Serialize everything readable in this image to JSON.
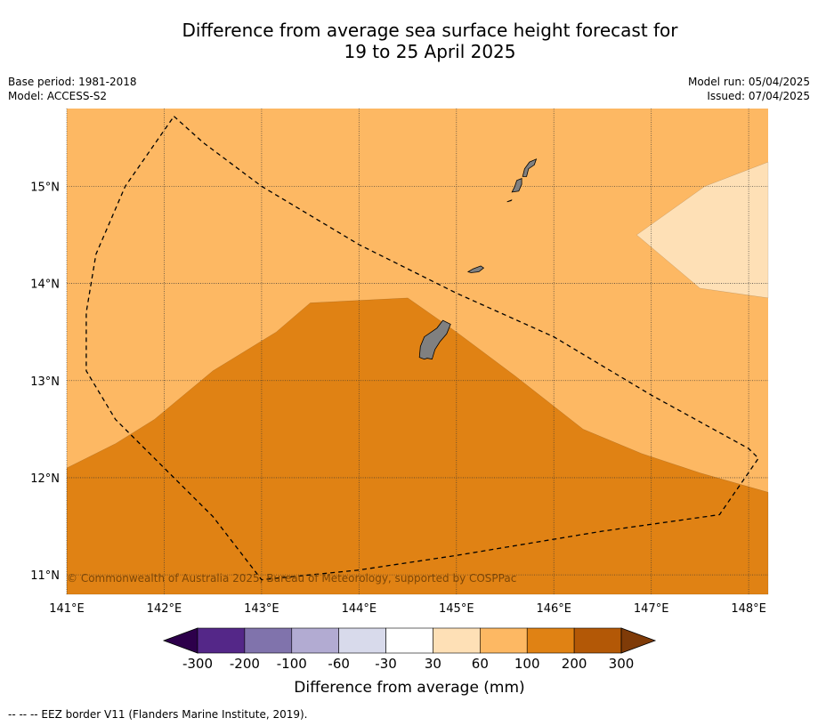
{
  "title": {
    "line1": "Difference from average sea surface height forecast for",
    "line2": "19 to 25 April 2025"
  },
  "info_left": {
    "base_period": "Base period: 1981-2018",
    "model": "Model: ACCESS-S2"
  },
  "info_right": {
    "model_run": "Model run: 05/04/2025",
    "issued": "Issued: 07/04/2025"
  },
  "map": {
    "lon_range": [
      141.0,
      148.2
    ],
    "lat_range": [
      10.8,
      15.8
    ],
    "lon_ticks": [
      141,
      142,
      143,
      144,
      145,
      146,
      147,
      148
    ],
    "lon_tick_labels": [
      "141°E",
      "142°E",
      "143°E",
      "144°E",
      "145°E",
      "146°E",
      "147°E",
      "148°E"
    ],
    "lat_ticks": [
      11,
      12,
      13,
      14,
      15
    ],
    "lat_tick_labels": [
      "11°N",
      "12°N",
      "13°N",
      "14°N",
      "15°N"
    ],
    "gridlines": true,
    "background_class": "60 to 100",
    "regions": [
      {
        "class": "100 to 200",
        "color": "#e08214",
        "polygon": [
          [
            141.0,
            10.8
          ],
          [
            148.2,
            10.8
          ],
          [
            148.2,
            11.85
          ],
          [
            147.5,
            12.05
          ],
          [
            146.9,
            12.25
          ],
          [
            146.3,
            12.5
          ],
          [
            145.6,
            13.05
          ],
          [
            145.0,
            13.5
          ],
          [
            144.5,
            13.85
          ],
          [
            143.5,
            13.8
          ],
          [
            143.15,
            13.5
          ],
          [
            142.5,
            13.1
          ],
          [
            141.9,
            12.6
          ],
          [
            141.5,
            12.35
          ],
          [
            141.0,
            12.1
          ]
        ]
      },
      {
        "class": "30 to 60",
        "color": "#fee0b6",
        "polygon": [
          [
            148.2,
            15.25
          ],
          [
            147.55,
            15.0
          ],
          [
            146.85,
            14.5
          ],
          [
            147.5,
            13.95
          ],
          [
            148.2,
            13.85
          ]
        ]
      }
    ],
    "islands": [
      {
        "name": "guam",
        "polygon": [
          [
            144.62,
            13.24
          ],
          [
            144.63,
            13.35
          ],
          [
            144.67,
            13.45
          ],
          [
            144.8,
            13.54
          ],
          [
            144.86,
            13.62
          ],
          [
            144.94,
            13.58
          ],
          [
            144.9,
            13.48
          ],
          [
            144.83,
            13.4
          ],
          [
            144.78,
            13.32
          ],
          [
            144.75,
            13.22
          ],
          [
            144.7,
            13.23
          ],
          [
            144.67,
            13.22
          ]
        ]
      },
      {
        "name": "rota",
        "polygon": [
          [
            145.12,
            14.12
          ],
          [
            145.17,
            14.15
          ],
          [
            145.25,
            14.18
          ],
          [
            145.28,
            14.16
          ],
          [
            145.23,
            14.12
          ],
          [
            145.15,
            14.11
          ]
        ]
      },
      {
        "name": "tinian",
        "polygon": [
          [
            145.57,
            14.94
          ],
          [
            145.6,
            15.0
          ],
          [
            145.62,
            15.06
          ],
          [
            145.67,
            15.08
          ],
          [
            145.67,
            15.02
          ],
          [
            145.64,
            14.95
          ]
        ]
      },
      {
        "name": "saipan",
        "polygon": [
          [
            145.68,
            15.1
          ],
          [
            145.7,
            15.18
          ],
          [
            145.75,
            15.25
          ],
          [
            145.82,
            15.28
          ],
          [
            145.8,
            15.22
          ],
          [
            145.74,
            15.18
          ],
          [
            145.72,
            15.1
          ]
        ]
      },
      {
        "name": "aguijan",
        "polygon": [
          [
            145.52,
            14.84
          ],
          [
            145.57,
            14.86
          ],
          [
            145.56,
            14.85
          ]
        ]
      }
    ],
    "eez_border": [
      [
        142.1,
        15.72
      ],
      [
        142.4,
        15.45
      ],
      [
        143.0,
        15.0
      ],
      [
        144.0,
        14.4
      ],
      [
        145.0,
        13.9
      ],
      [
        146.0,
        13.45
      ],
      [
        147.0,
        12.85
      ],
      [
        148.0,
        12.3
      ],
      [
        148.1,
        12.2
      ],
      [
        147.7,
        11.62
      ],
      [
        146.5,
        11.45
      ],
      [
        145.0,
        11.2
      ],
      [
        144.0,
        11.05
      ],
      [
        143.0,
        10.95
      ],
      [
        142.5,
        11.6
      ],
      [
        141.5,
        12.6
      ],
      [
        141.2,
        13.1
      ],
      [
        141.2,
        13.7
      ],
      [
        141.3,
        14.3
      ],
      [
        141.6,
        15.0
      ],
      [
        142.1,
        15.72
      ]
    ],
    "copyright": "© Commonwealth of Australia 2025, Bureau of Meteorology, supported by COSPPac"
  },
  "colorbar": {
    "colors": [
      "#2d004b",
      "#542788",
      "#8073ac",
      "#b2abd2",
      "#d8daeb",
      "#ffffff",
      "#fee0b6",
      "#fdb863",
      "#e08214",
      "#b35806",
      "#7f3b08"
    ],
    "tick_labels": [
      "-300",
      "-200",
      "-100",
      "-60",
      "-30",
      "30",
      "60",
      "100",
      "200",
      "300"
    ],
    "label": "Difference from average (mm)"
  },
  "footnote": "--  --  -- EEZ border V11 (Flanders Marine Institute, 2019).",
  "chart_data": {
    "type": "heatmap",
    "title": "Difference from average sea surface height forecast for 19 to 25 April 2025",
    "xlabel": "",
    "ylabel": "",
    "xlim": [
      141.0,
      148.2
    ],
    "ylim": [
      10.8,
      15.8
    ],
    "unit": "mm",
    "classes": [
      "-300 to -200",
      "-200 to -100",
      "-100 to -60",
      "-60 to -30",
      "-30 to 30",
      "30 to 60",
      "60 to 100",
      "100 to 200",
      "200 to 300"
    ],
    "depicted_classes": [
      "30 to 60",
      "60 to 100",
      "100 to 200"
    ]
  }
}
